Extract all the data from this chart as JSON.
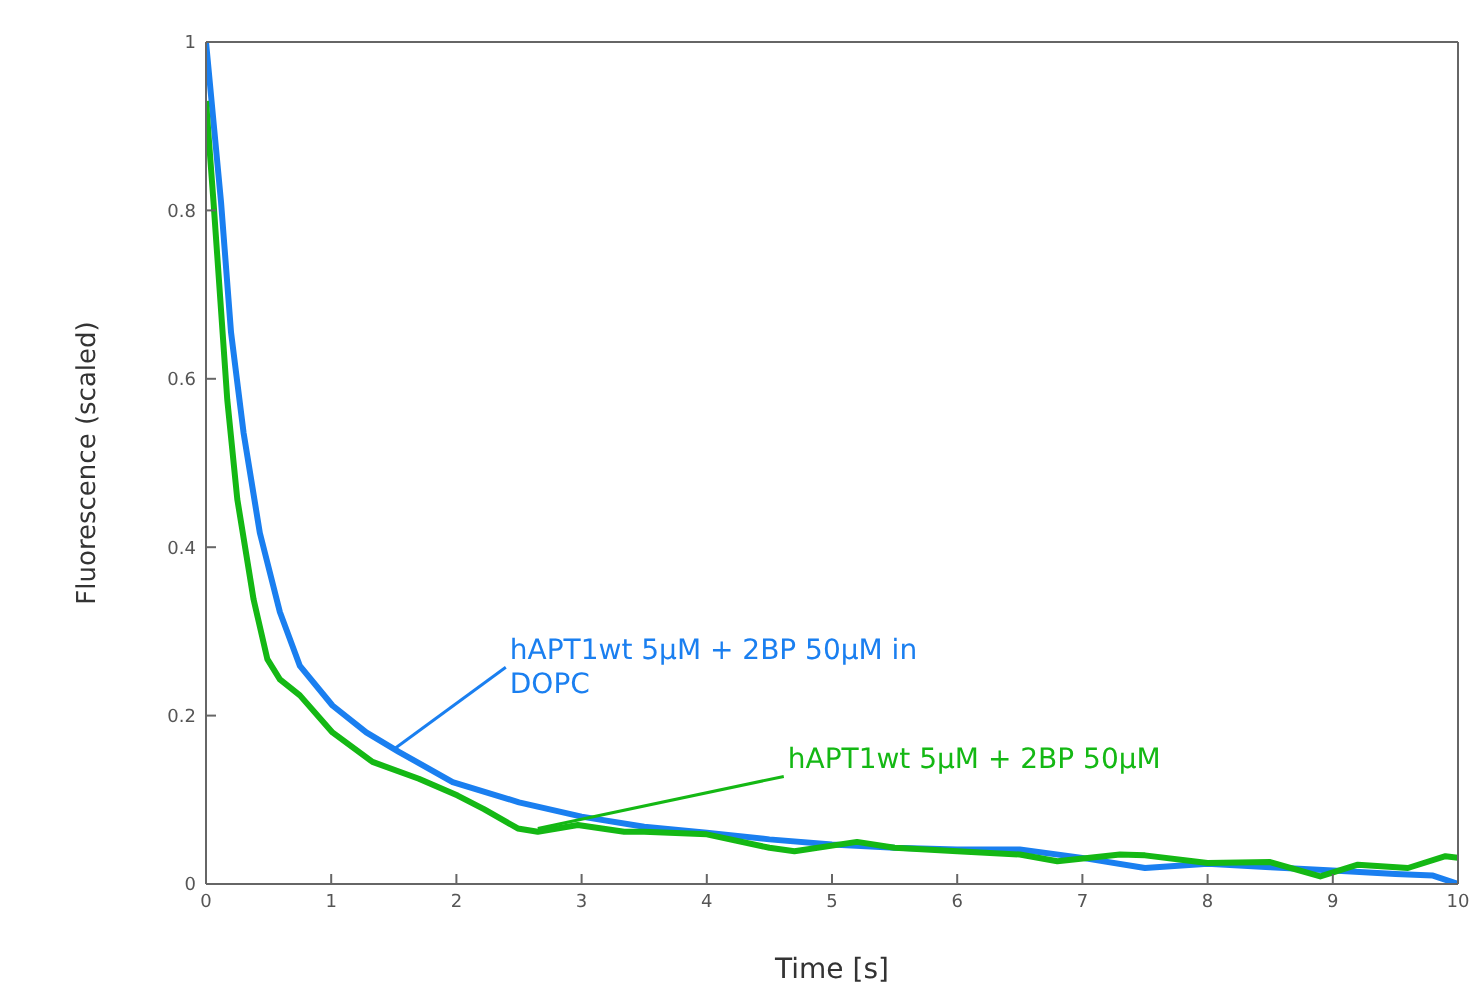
{
  "chart_data": {
    "type": "line",
    "xlabel": "Time [s]",
    "ylabel": "Fluorescence (scaled)",
    "xlim": [
      0,
      10
    ],
    "ylim": [
      0,
      1
    ],
    "xticks": [
      0,
      1,
      2,
      3,
      4,
      5,
      6,
      7,
      8,
      9,
      10
    ],
    "yticks": [
      0,
      0.2,
      0.4,
      0.6,
      0.8,
      1
    ],
    "marker": "none",
    "line_style": "solid",
    "series": [
      {
        "color": "#1a7ff0",
        "x": [
          0,
          0.12,
          0.2,
          0.3,
          0.43,
          0.59,
          0.75,
          1.01,
          1.28,
          1.54,
          1.97,
          2.5,
          3,
          3.5,
          4,
          4.5,
          5,
          5.5,
          6,
          6.5,
          7,
          7.5,
          8,
          8.5,
          9,
          9.5,
          9.8,
          10
        ],
        "values": [
          1.0,
          0.81,
          0.655,
          0.536,
          0.417,
          0.323,
          0.259,
          0.212,
          0.18,
          0.157,
          0.121,
          0.097,
          0.08,
          0.068,
          0.061,
          0.053,
          0.047,
          0.043,
          0.041,
          0.041,
          0.031,
          0.019,
          0.024,
          0.02,
          0.016,
          0.012,
          0.01,
          0
        ]
      },
      {
        "color": "#14b814",
        "x": [
          0,
          0.06,
          0.17,
          0.25,
          0.38,
          0.49,
          0.59,
          0.75,
          1.01,
          1.33,
          1.7,
          2.01,
          2.22,
          2.49,
          2.65,
          2.97,
          3.34,
          3.5,
          4,
          4.5,
          4.7,
          5.2,
          5.5,
          6,
          6.5,
          6.8,
          7.3,
          7.5,
          8,
          8.5,
          8.9,
          9.2,
          9.6,
          9.9,
          10
        ],
        "values": [
          0.93,
          0.81,
          0.575,
          0.457,
          0.338,
          0.267,
          0.243,
          0.224,
          0.18,
          0.145,
          0.125,
          0.105,
          0.089,
          0.066,
          0.062,
          0.07,
          0.062,
          0.062,
          0.059,
          0.043,
          0.039,
          0.05,
          0.043,
          0.039,
          0.035,
          0.027,
          0.035,
          0.034,
          0.025,
          0.026,
          0.009,
          0.023,
          0.019,
          0.033,
          0.031
        ]
      }
    ],
    "annotations": [
      {
        "text": "hAPT1wt 5µM + 2BP 50µM in DOPC",
        "x": 1.5,
        "y": 0.16
      },
      {
        "text": "hAPT1wt 5µM + 2BP 50µM",
        "x": 2.65,
        "y": 0.066
      }
    ]
  }
}
